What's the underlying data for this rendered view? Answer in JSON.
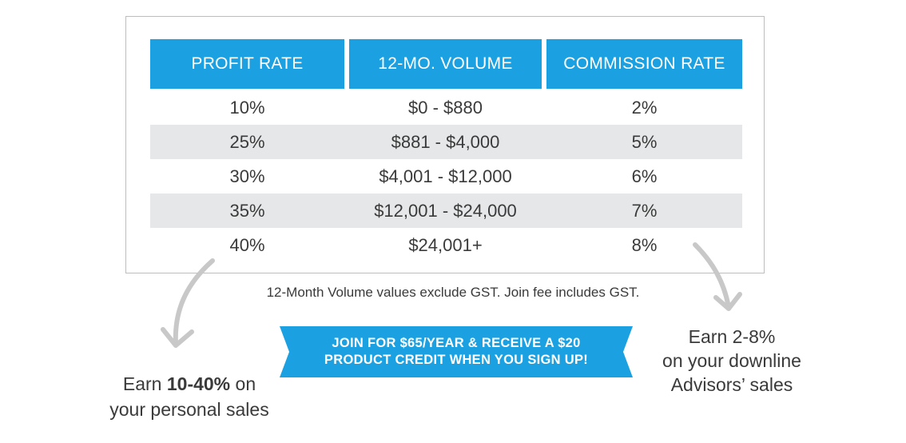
{
  "table": {
    "headers": [
      "PROFIT RATE",
      "12-MO. VOLUME",
      "COMMISSION RATE"
    ],
    "rows": [
      [
        "10%",
        "$0 - $880",
        "2%"
      ],
      [
        "25%",
        "$881 - $4,000",
        "5%"
      ],
      [
        "30%",
        "$4,001 - $12,000",
        "6%"
      ],
      [
        "35%",
        "$12,001 - $24,000",
        "7%"
      ],
      [
        "40%",
        "$24,001+",
        "8%"
      ]
    ]
  },
  "footnote": "12-Month Volume values exclude GST. Join fee includes GST.",
  "banner": {
    "line1": "JOIN FOR $65/YEAR & RECEIVE A $20",
    "line2": "PRODUCT CREDIT WHEN YOU SIGN UP!"
  },
  "earn_left": {
    "prefix": "Earn ",
    "bold": "10-40%",
    "suffix": " on",
    "line2": "your personal sales"
  },
  "earn_right": {
    "line1": "Earn 2-8%",
    "line2": "on your downline",
    "line3": "Advisors’ sales"
  },
  "colors": {
    "header_blue": "#1ba1e2",
    "row_shade": "#e6e7e8",
    "text": "#3a3a3a",
    "arrow": "#c8c8c8"
  },
  "icons": [
    "curved-arrow-left-icon",
    "curved-arrow-right-icon"
  ]
}
